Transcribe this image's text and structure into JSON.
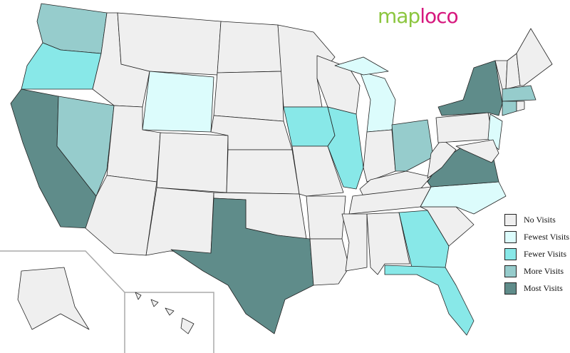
{
  "logo": {
    "part1": "map",
    "part2": "loco"
  },
  "categories": {
    "none": {
      "label": "No Visits",
      "color": "#efefef"
    },
    "fewest": {
      "label": "Fewest Visits",
      "color": "#dcfcfc"
    },
    "fewer": {
      "label": "Fewer Visits",
      "color": "#88e8e8"
    },
    "more": {
      "label": "More Visits",
      "color": "#96cccc"
    },
    "most": {
      "label": "Most Visits",
      "color": "#5f8c8a"
    }
  },
  "states": {
    "WA": "more",
    "OR": "fewer",
    "CA": "most",
    "NV": "more",
    "ID": "none",
    "MT": "none",
    "WY": "fewest",
    "UT": "none",
    "AZ": "none",
    "CO": "none",
    "NM": "none",
    "ND": "none",
    "SD": "none",
    "NE": "none",
    "KS": "none",
    "OK": "none",
    "TX": "most",
    "MN": "none",
    "IA": "fewer",
    "MO": "none",
    "AR": "none",
    "LA": "none",
    "WI": "none",
    "IL": "fewer",
    "MI": "fewest",
    "IN": "none",
    "OH": "more",
    "KY": "none",
    "TN": "none",
    "MS": "none",
    "AL": "none",
    "GA": "fewer",
    "FL": "fewer",
    "SC": "none",
    "NC": "fewest",
    "VA": "most",
    "WV": "none",
    "PA": "none",
    "NY": "most",
    "NJ": "fewest",
    "MD": "none",
    "VT": "none",
    "NH": "none",
    "ME": "none",
    "MA": "more",
    "CT": "more",
    "RI": "none",
    "AK": "none",
    "HI": "none"
  }
}
